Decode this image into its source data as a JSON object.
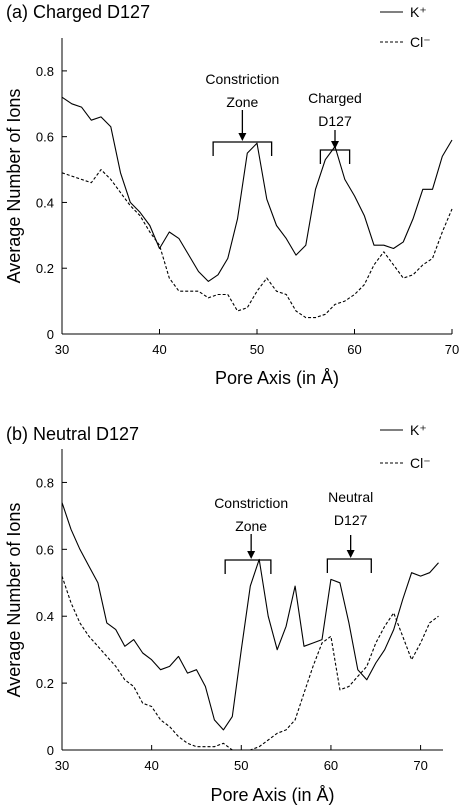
{
  "chart_data": [
    {
      "type": "line",
      "panel_label": "(a)",
      "title": "Charged D127",
      "xlabel": "Pore Axis (in Å)",
      "ylabel": "Average Number of Ions",
      "xlim": [
        30,
        70
      ],
      "ylim": [
        0,
        0.9
      ],
      "xticks": [
        "30",
        "40",
        "50",
        "60",
        "70"
      ],
      "yticks": [
        "0",
        "0.2",
        "0.4",
        "0.6",
        "0.8"
      ],
      "legend": [
        {
          "name": "K⁺",
          "style": "solid"
        },
        {
          "name": "Cl⁻",
          "style": "dashed"
        }
      ],
      "annotations": [
        {
          "line1": "Constriction",
          "line2": "Zone",
          "bracket_x": [
            45.5,
            51.5
          ],
          "arrow_x": 48.5
        },
        {
          "line1": "Charged",
          "line2": "D127",
          "bracket_x": [
            56.5,
            59.5
          ],
          "arrow_x": 58
        }
      ],
      "series": [
        {
          "name": "K⁺",
          "style": "solid",
          "x": [
            30,
            31,
            32,
            33,
            34,
            35,
            36,
            37,
            38,
            39,
            40,
            41,
            42,
            43,
            44,
            45,
            46,
            47,
            48,
            49,
            50,
            51,
            52,
            53,
            54,
            55,
            56,
            57,
            58,
            59,
            60,
            61,
            62,
            63,
            64,
            65,
            66,
            67,
            68,
            69,
            70
          ],
          "y": [
            0.72,
            0.7,
            0.69,
            0.65,
            0.66,
            0.63,
            0.49,
            0.4,
            0.37,
            0.33,
            0.26,
            0.31,
            0.29,
            0.24,
            0.19,
            0.16,
            0.18,
            0.23,
            0.35,
            0.55,
            0.58,
            0.41,
            0.33,
            0.29,
            0.24,
            0.27,
            0.44,
            0.53,
            0.57,
            0.47,
            0.42,
            0.36,
            0.27,
            0.27,
            0.26,
            0.28,
            0.35,
            0.44,
            0.44,
            0.54,
            0.59
          ]
        },
        {
          "name": "Cl⁻",
          "style": "dashed",
          "x": [
            30,
            31,
            32,
            33,
            34,
            35,
            36,
            37,
            38,
            39,
            40,
            41,
            42,
            43,
            44,
            45,
            46,
            47,
            48,
            49,
            50,
            51,
            52,
            53,
            54,
            55,
            56,
            57,
            58,
            59,
            60,
            61,
            62,
            63,
            64,
            65,
            66,
            67,
            68,
            69,
            70
          ],
          "y": [
            0.49,
            0.48,
            0.47,
            0.46,
            0.5,
            0.47,
            0.43,
            0.39,
            0.36,
            0.31,
            0.27,
            0.17,
            0.13,
            0.13,
            0.13,
            0.11,
            0.12,
            0.12,
            0.07,
            0.08,
            0.13,
            0.17,
            0.13,
            0.12,
            0.07,
            0.05,
            0.05,
            0.06,
            0.09,
            0.1,
            0.12,
            0.15,
            0.21,
            0.25,
            0.21,
            0.17,
            0.18,
            0.21,
            0.23,
            0.31,
            0.38
          ]
        }
      ]
    },
    {
      "type": "line",
      "panel_label": "(b)",
      "title": "Neutral D127",
      "xlabel": "Pore Axis (in Å)",
      "ylabel": "Average Number of Ions",
      "xlim": [
        30,
        72.5
      ],
      "ylim": [
        0,
        0.9
      ],
      "xticks": [
        "30",
        "40",
        "50",
        "60",
        "70"
      ],
      "yticks": [
        "0",
        "0.2",
        "0.4",
        "0.6",
        "0.8"
      ],
      "legend": [
        {
          "name": "K⁺",
          "style": "solid"
        },
        {
          "name": "Cl⁻",
          "style": "dashed"
        }
      ],
      "annotations": [
        {
          "line1": "Constriction",
          "line2": "Zone",
          "bracket_x": [
            48.2,
            53.3
          ],
          "arrow_x": 51.1
        },
        {
          "line1": "Neutral",
          "line2": "D127",
          "bracket_x": [
            59.6,
            64.5
          ],
          "arrow_x": 62.2
        }
      ],
      "series": [
        {
          "name": "K⁺",
          "style": "solid",
          "x": [
            30,
            31,
            32,
            33,
            34,
            35,
            36,
            37,
            38,
            39,
            40,
            41,
            42,
            43,
            44,
            45,
            46,
            47,
            48,
            49,
            50,
            51,
            52,
            53,
            54,
            55,
            56,
            57,
            58,
            59,
            60,
            61,
            62,
            63,
            64,
            65,
            66,
            67,
            68,
            69,
            70,
            71,
            72
          ],
          "y": [
            0.74,
            0.66,
            0.6,
            0.55,
            0.5,
            0.38,
            0.36,
            0.31,
            0.33,
            0.29,
            0.27,
            0.24,
            0.25,
            0.28,
            0.23,
            0.24,
            0.19,
            0.09,
            0.06,
            0.1,
            0.3,
            0.49,
            0.57,
            0.4,
            0.3,
            0.37,
            0.49,
            0.31,
            0.32,
            0.33,
            0.51,
            0.5,
            0.38,
            0.24,
            0.21,
            0.26,
            0.3,
            0.36,
            0.45,
            0.53,
            0.52,
            0.53,
            0.56
          ]
        },
        {
          "name": "Cl⁻",
          "style": "dashed",
          "x": [
            30,
            31,
            32,
            33,
            34,
            35,
            36,
            37,
            38,
            39,
            40,
            41,
            42,
            43,
            44,
            45,
            46,
            47,
            48,
            49,
            50,
            51,
            52,
            53,
            54,
            55,
            56,
            57,
            58,
            59,
            60,
            61,
            62,
            63,
            64,
            65,
            66,
            67,
            68,
            69,
            70,
            71,
            72
          ],
          "y": [
            0.52,
            0.44,
            0.38,
            0.34,
            0.31,
            0.28,
            0.25,
            0.21,
            0.19,
            0.14,
            0.13,
            0.09,
            0.07,
            0.04,
            0.02,
            0.01,
            0.01,
            0.01,
            0.02,
            0.0,
            0.0,
            0.0,
            0.01,
            0.03,
            0.05,
            0.06,
            0.09,
            0.17,
            0.25,
            0.32,
            0.34,
            0.18,
            0.19,
            0.22,
            0.25,
            0.32,
            0.37,
            0.41,
            0.34,
            0.27,
            0.32,
            0.38,
            0.4
          ]
        }
      ]
    }
  ]
}
